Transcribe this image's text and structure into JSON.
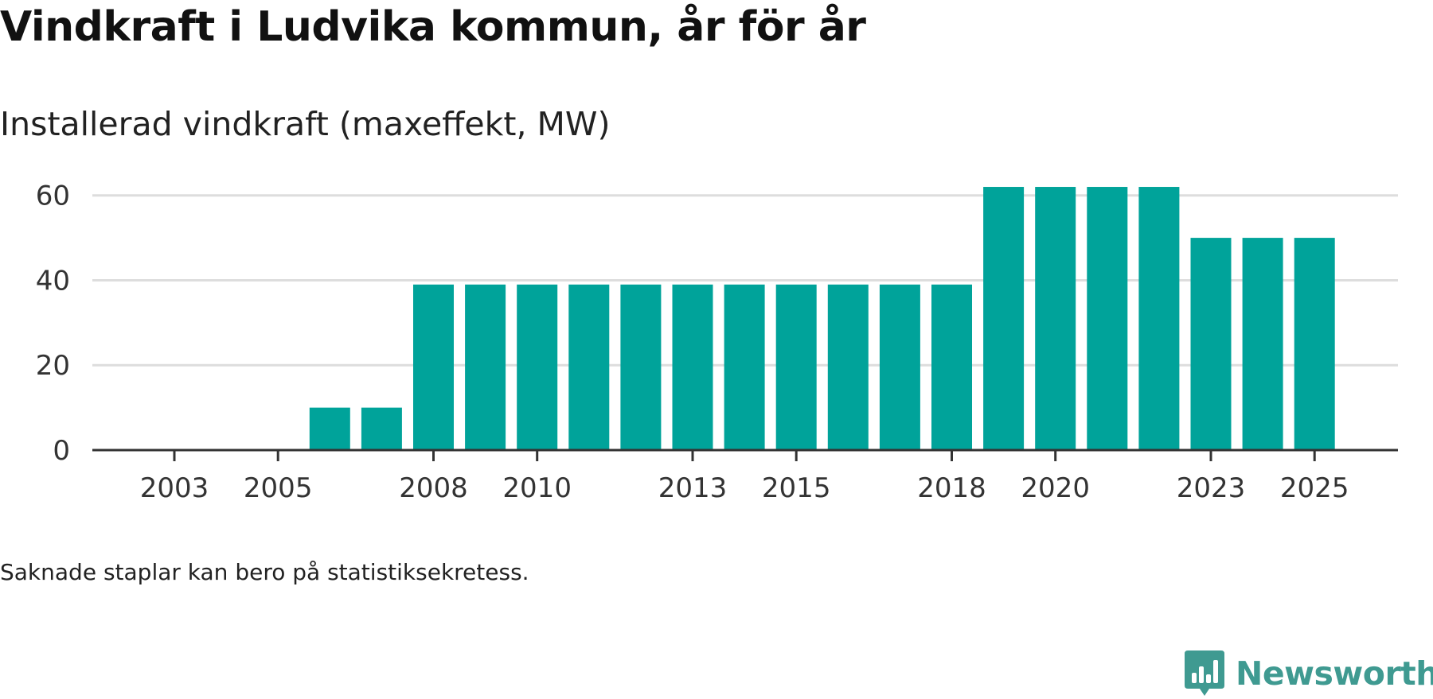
{
  "header": {
    "title": "Vindkraft i Ludvika kommun, år för år",
    "subtitle": "Installerad vindkraft (maxeffekt, MW)"
  },
  "footer": {
    "note": "Saknade staplar kan bero på statistiksekretess.",
    "brand": "Newsworthy",
    "brand_icon": "bar-chart-bubble-icon"
  },
  "colors": {
    "bar": "#00a39a",
    "grid": "#dddddd",
    "axis": "#333333",
    "brand": "#3f9a91"
  },
  "chart_data": {
    "type": "bar",
    "title": "Vindkraft i Ludvika kommun, år för år",
    "subtitle": "Installerad vindkraft (maxeffekt, MW)",
    "xlabel": "",
    "ylabel": "",
    "ylim": [
      0,
      68
    ],
    "yticks": [
      0,
      20,
      40,
      60
    ],
    "grid": true,
    "categories": [
      2003,
      2004,
      2005,
      2006,
      2007,
      2008,
      2009,
      2010,
      2011,
      2012,
      2013,
      2014,
      2015,
      2016,
      2017,
      2018,
      2019,
      2020,
      2021,
      2022,
      2023,
      2024,
      2025
    ],
    "xtick_labels": [
      2003,
      2005,
      2008,
      2010,
      2013,
      2015,
      2018,
      2020,
      2023,
      2025
    ],
    "values": [
      null,
      null,
      null,
      10,
      10,
      39,
      39,
      39,
      39,
      39,
      39,
      39,
      39,
      39,
      39,
      39,
      62,
      62,
      62,
      62,
      50,
      50,
      50
    ]
  }
}
